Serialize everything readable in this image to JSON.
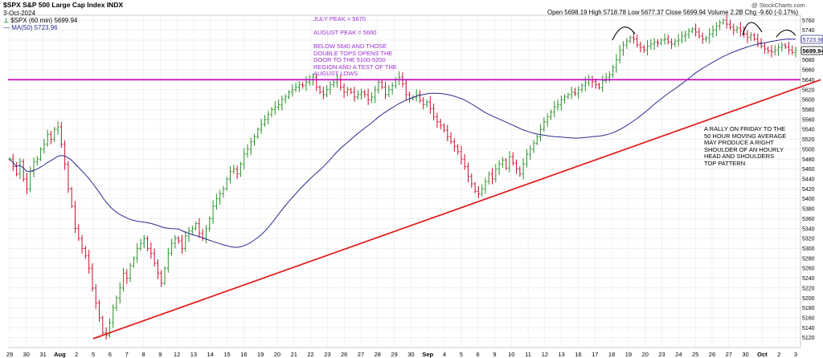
{
  "header": {
    "symbol_line": "$SPX S&P 500 Large Cap Index INDX",
    "date": "3-Oct-2024",
    "watermark": "@ StockCharts.com",
    "quote_line": "Open 5698.19  High 5718.78  Low 5677.37  Close 5699.94  Volume 2.2B  Chg -9.60 (-0.17%)",
    "legend_price": "$SPX (60 min) 5699.94",
    "legend_ma": "MA(50) 5723.96"
  },
  "annotations": {
    "july_peak": "JULY PEAK = 5670",
    "august_peak": "AUGUST PEAK = 5660",
    "breakdown_note": "BELOW 5640 AND THOSE\nDOUBLE TOPS OPENS THE\nDOOR TO  THE 5100-5200\nREGION  AND A TEST OF THE\nAUGUST LOWS",
    "rally_note": "A RALLY ON FRIDAY TO THE\n50 HOUR MOVING AVERAGE\nMAY PRODUCE A RIGHT\nSHOULDER OF AN HOURLY\nHEAD AND SHOULDERS\nTOP PATTERN"
  },
  "colors": {
    "up_bar": "#2a8f2a",
    "down_bar": "#c8102e",
    "ma_line": "#2b2b8f",
    "horizontal_line": "#c000c0",
    "trend_line": "#e02020",
    "annotation_text": "#9b30d0",
    "gridline": "#e6e6e6"
  },
  "chart_data": {
    "type": "ohlc",
    "interval": "60 min",
    "ylim": [
      5100,
      5770
    ],
    "y_ticks": [
      5120,
      5140,
      5160,
      5180,
      5200,
      5220,
      5240,
      5260,
      5280,
      5300,
      5320,
      5340,
      5360,
      5380,
      5400,
      5420,
      5440,
      5460,
      5480,
      5500,
      5520,
      5540,
      5560,
      5580,
      5600,
      5620,
      5640,
      5660,
      5680,
      5700,
      5720,
      5740,
      5760
    ],
    "y_tick_labels": [
      "5120",
      "5140",
      "5160",
      "5180",
      "5200",
      "5220",
      "5240",
      "5260",
      "5280",
      "5300",
      "5320",
      "5340",
      "5360",
      "5380",
      "5400",
      "5420",
      "5440",
      "5460",
      "5480",
      "5500",
      "5520",
      "5540",
      "5560",
      "5580",
      "5600",
      "5620",
      "5640",
      "5660",
      "5680",
      "5700",
      "5720",
      "5740",
      "5760"
    ],
    "x_labels": [
      "29",
      "30",
      "31",
      "Aug",
      "2",
      "5",
      "6",
      "7",
      "8",
      "9",
      "12",
      "13",
      "14",
      "15",
      "16",
      "19",
      "20",
      "21",
      "22",
      "23",
      "26",
      "27",
      "28",
      "29",
      "30",
      "Sep",
      "4",
      "5",
      "6",
      "9",
      "10",
      "11",
      "12",
      "13",
      "16",
      "17",
      "18",
      "19",
      "20",
      "23",
      "24",
      "25",
      "26",
      "27",
      "30",
      "Oct",
      "2",
      "3"
    ],
    "x_label_bold": [
      "Aug",
      "Sep",
      "Oct"
    ],
    "price_close": [
      5480,
      5465,
      5450,
      5475,
      5440,
      5420,
      5455,
      5475,
      5480,
      5500,
      5510,
      5530,
      5520,
      5540,
      5545,
      5510,
      5470,
      5420,
      5385,
      5340,
      5320,
      5300,
      5285,
      5260,
      5220,
      5190,
      5160,
      5130,
      5125,
      5150,
      5180,
      5200,
      5220,
      5250,
      5240,
      5265,
      5280,
      5300,
      5310,
      5320,
      5300,
      5290,
      5270,
      5250,
      5230,
      5260,
      5290,
      5310,
      5320,
      5315,
      5300,
      5325,
      5335,
      5340,
      5350,
      5330,
      5320,
      5340,
      5360,
      5385,
      5400,
      5410,
      5420,
      5440,
      5455,
      5460,
      5450,
      5470,
      5490,
      5500,
      5515,
      5525,
      5540,
      5550,
      5560,
      5570,
      5580,
      5585,
      5590,
      5600,
      5605,
      5615,
      5620,
      5625,
      5630,
      5628,
      5635,
      5640,
      5645,
      5625,
      5615,
      5610,
      5620,
      5630,
      5635,
      5640,
      5625,
      5615,
      5620,
      5615,
      5605,
      5610,
      5615,
      5610,
      5600,
      5605,
      5620,
      5635,
      5625,
      5610,
      5620,
      5628,
      5640,
      5645,
      5632,
      5610,
      5602,
      5605,
      5610,
      5598,
      5590,
      5595,
      5582,
      5565,
      5555,
      5548,
      5538,
      5525,
      5515,
      5505,
      5495,
      5480,
      5465,
      5445,
      5430,
      5415,
      5410,
      5420,
      5435,
      5450,
      5440,
      5460,
      5470,
      5478,
      5462,
      5485,
      5472,
      5460,
      5450,
      5470,
      5490,
      5500,
      5512,
      5525,
      5540,
      5555,
      5565,
      5575,
      5585,
      5590,
      5600,
      5605,
      5610,
      5615,
      5612,
      5620,
      5628,
      5634,
      5640,
      5636,
      5630,
      5624,
      5638,
      5645,
      5650,
      5665,
      5680,
      5700,
      5710,
      5718,
      5725,
      5722,
      5710,
      5705,
      5700,
      5708,
      5712,
      5716,
      5714,
      5720,
      5722,
      5716,
      5712,
      5718,
      5720,
      5728,
      5731,
      5738,
      5742,
      5736,
      5728,
      5722,
      5724,
      5732,
      5740,
      5748,
      5755,
      5760,
      5752,
      5746,
      5740,
      5744,
      5738,
      5732,
      5726,
      5730,
      5722,
      5715,
      5708,
      5702,
      5698,
      5696,
      5700,
      5705,
      5710,
      5706,
      5700,
      5695,
      5699.94
    ],
    "ma_period": 50,
    "ma_last_value": 5723.96,
    "last_close": 5699.94,
    "horizontal_line_level": 5640,
    "trend_line": {
      "from": {
        "x": "5 Aug",
        "y": 5118
      },
      "to": {
        "x": "3 Oct",
        "y": 5640
      }
    },
    "grid": true
  }
}
